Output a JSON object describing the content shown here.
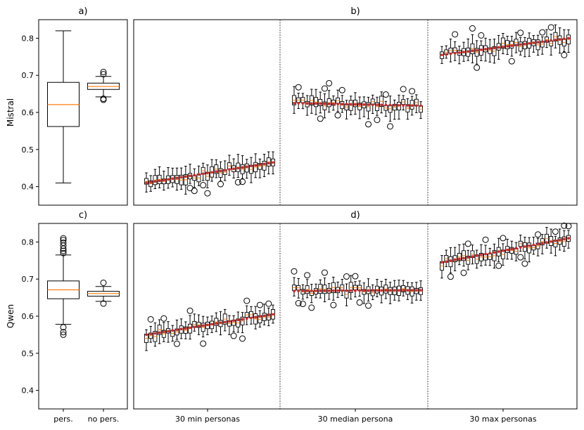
{
  "chart_data": {
    "type": "box",
    "ylim": [
      0.35,
      0.85
    ],
    "yticks": [
      0.4,
      0.5,
      0.6,
      0.7,
      0.8
    ],
    "rows": [
      {
        "ylabel": "Mistral",
        "summary_panel": {
          "label": "a)",
          "categories": [
            "pers.",
            "no pers."
          ],
          "boxes": [
            {
              "whislo": 0.41,
              "q1": 0.562,
              "med": 0.621,
              "q3": 0.681,
              "whishi": 0.82,
              "fliers": []
            },
            {
              "whislo": 0.642,
              "q1": 0.662,
              "med": 0.67,
              "q3": 0.679,
              "whishi": 0.697,
              "fliers": [
                0.637,
                0.634,
                0.703,
                0.709
              ]
            }
          ]
        },
        "persona_panel": {
          "label": "b)",
          "groups": [
            "30 min personas",
            "30 median persona",
            "30 max personas"
          ],
          "boxes_per_group": 30,
          "group_ranges": [
            [
              0.41,
              0.465
            ],
            [
              0.625,
              0.618
            ],
            [
              0.755,
              0.8
            ]
          ]
        }
      },
      {
        "ylabel": "Qwen",
        "summary_panel": {
          "label": "c)",
          "categories": [
            "pers.",
            "no pers."
          ],
          "boxes": [
            {
              "whislo": 0.578,
              "q1": 0.647,
              "med": 0.671,
              "q3": 0.695,
              "whishi": 0.765,
              "fliers": [
                0.55,
                0.557,
                0.57,
                0.77,
                0.776,
                0.782,
                0.79,
                0.798,
                0.805,
                0.81
              ]
            },
            {
              "whislo": 0.64,
              "q1": 0.654,
              "med": 0.661,
              "q3": 0.667,
              "whishi": 0.68,
              "fliers": [
                0.634,
                0.69
              ]
            }
          ]
        },
        "persona_panel": {
          "label": "d)",
          "groups": [
            "30 min personas",
            "30 median persona",
            "30 max personas"
          ],
          "boxes_per_group": 30,
          "group_ranges": [
            [
              0.55,
              0.605
            ],
            [
              0.668,
              0.67
            ],
            [
              0.745,
              0.81
            ]
          ]
        }
      }
    ],
    "colors": {
      "median": "#ff7f0e",
      "mean_marker": "#d62728",
      "box_stroke": "#000000"
    }
  }
}
